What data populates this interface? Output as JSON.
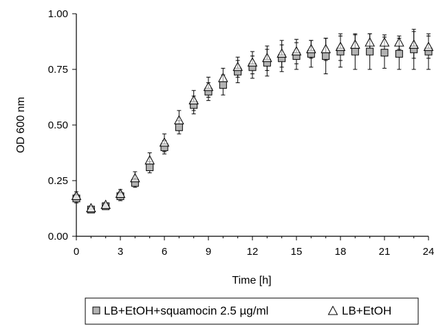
{
  "chart_data": {
    "type": "scatter",
    "title": "",
    "xlabel": "Time [h]",
    "ylabel": "OD 600 nm",
    "xlim": [
      0,
      24
    ],
    "ylim": [
      0,
      1
    ],
    "x_ticks": [
      "0",
      "3",
      "6",
      "9",
      "12",
      "15",
      "18",
      "21",
      "24"
    ],
    "y_ticks": [
      "0.00",
      "0.25",
      "0.50",
      "0.75",
      "1.00"
    ],
    "grid": false,
    "legend_position": "bottom",
    "series": [
      {
        "name": "LB+EtOH+squamocin 2.5 µg/ml",
        "marker": "square",
        "fill": "#b3b3b3",
        "x": [
          0,
          1,
          2,
          3,
          4,
          5,
          6,
          7,
          8,
          9,
          10,
          11,
          12,
          13,
          14,
          15,
          16,
          17,
          18,
          19,
          20,
          21,
          22,
          23,
          24
        ],
        "y": [
          0.17,
          0.12,
          0.135,
          0.18,
          0.24,
          0.31,
          0.4,
          0.49,
          0.59,
          0.65,
          0.68,
          0.74,
          0.76,
          0.78,
          0.8,
          0.81,
          0.82,
          0.81,
          0.83,
          0.83,
          0.83,
          0.825,
          0.82,
          0.84,
          0.83
        ],
        "err": [
          0.02,
          0.01,
          0.01,
          0.02,
          0.02,
          0.025,
          0.03,
          0.03,
          0.04,
          0.04,
          0.045,
          0.05,
          0.05,
          0.06,
          0.06,
          0.06,
          0.06,
          0.08,
          0.07,
          0.08,
          0.08,
          0.07,
          0.07,
          0.09,
          0.08
        ]
      },
      {
        "name": "LB+EtOH",
        "marker": "triangle",
        "fill": "#ffffff",
        "x": [
          0,
          1,
          2,
          3,
          4,
          5,
          6,
          7,
          8,
          9,
          10,
          11,
          12,
          13,
          14,
          15,
          16,
          17,
          18,
          19,
          20,
          21,
          22,
          23,
          24
        ],
        "y": [
          0.18,
          0.125,
          0.14,
          0.19,
          0.26,
          0.34,
          0.42,
          0.52,
          0.61,
          0.67,
          0.71,
          0.76,
          0.78,
          0.8,
          0.82,
          0.83,
          0.84,
          0.84,
          0.85,
          0.86,
          0.87,
          0.87,
          0.87,
          0.86,
          0.85
        ],
        "err": [
          0.02,
          0.01,
          0.01,
          0.02,
          0.03,
          0.035,
          0.04,
          0.045,
          0.045,
          0.045,
          0.045,
          0.045,
          0.05,
          0.055,
          0.06,
          0.055,
          0.04,
          0.05,
          0.06,
          0.045,
          0.04,
          0.035,
          0.03,
          0.06,
          0.05
        ]
      }
    ]
  }
}
